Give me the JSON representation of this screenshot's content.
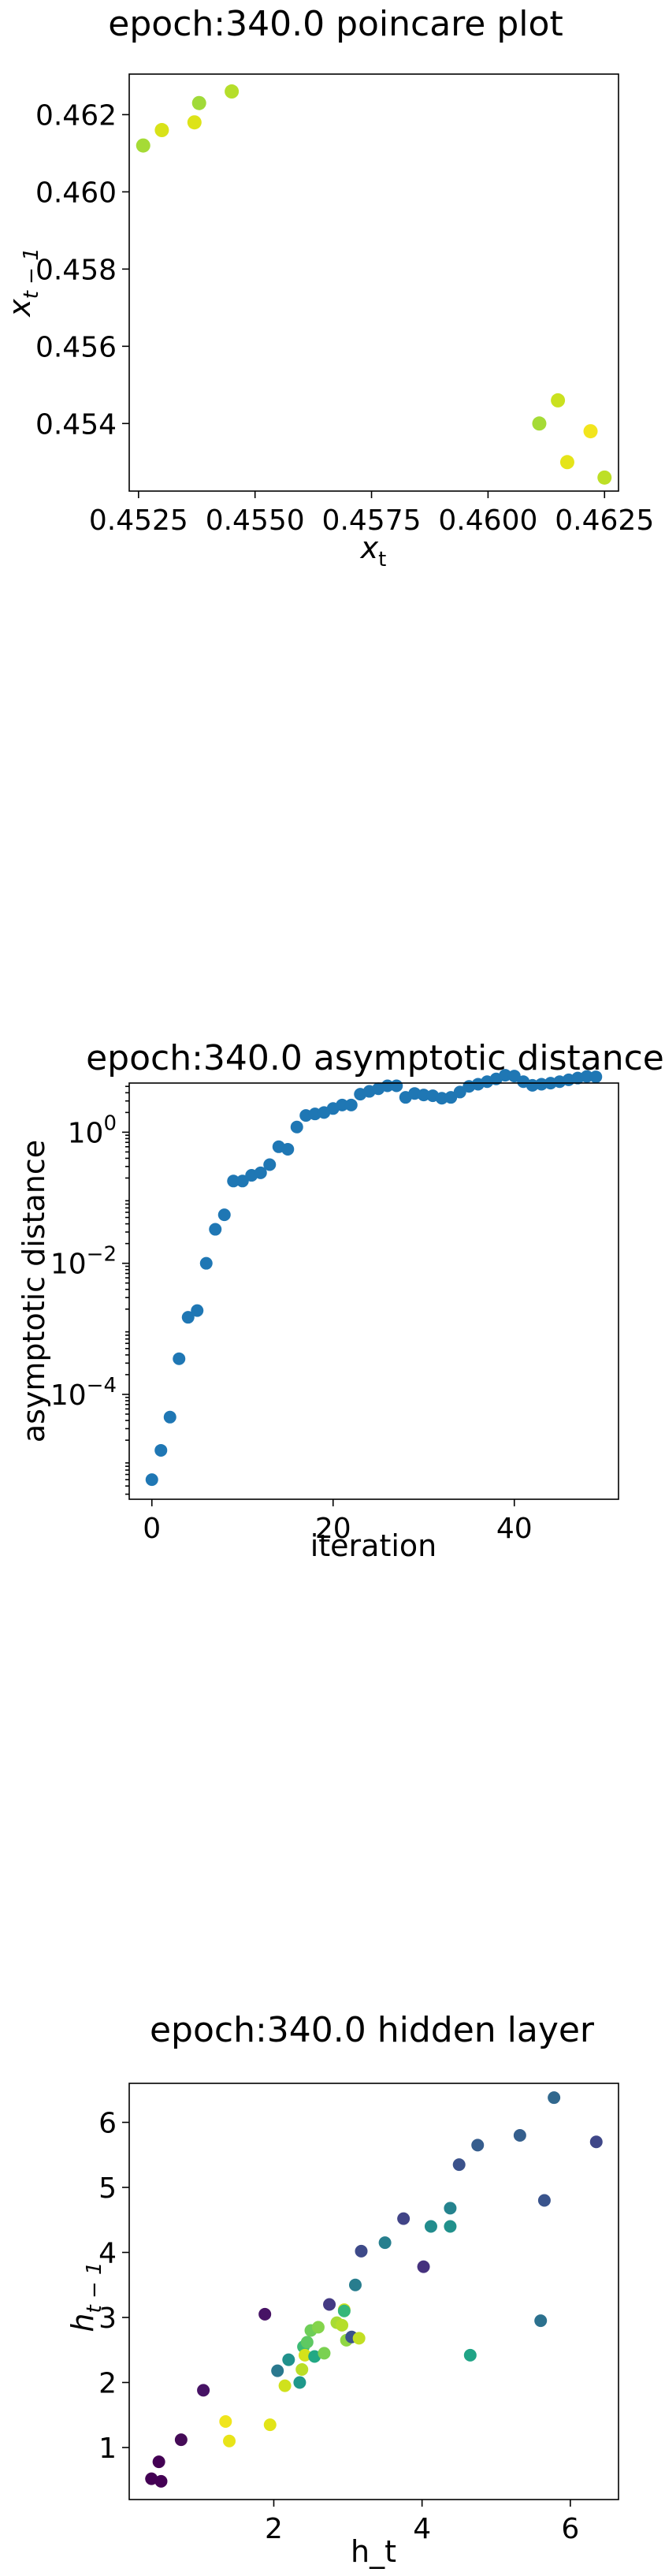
{
  "chart_data": [
    {
      "type": "scatter",
      "title": "epoch:340.0 poincare plot",
      "xlabel": "x_t",
      "ylabel": "x_{t-1}",
      "xlim": [
        0.4523,
        0.4628
      ],
      "ylim": [
        0.45225,
        0.46305
      ],
      "xticks": [
        0.4525,
        0.455,
        0.4575,
        0.46,
        0.4625
      ],
      "xtick_labels": [
        "0.4525",
        "0.4550",
        "0.4575",
        "0.4600",
        "0.4625"
      ],
      "yticks": [
        0.454,
        0.456,
        0.458,
        0.46,
        0.462
      ],
      "ytick_labels": [
        "0.454",
        "0.456",
        "0.458",
        "0.460",
        "0.462"
      ],
      "colormap": "viridis",
      "points": [
        {
          "x": 0.4526,
          "y": 0.4612,
          "color": "#a5db36"
        },
        {
          "x": 0.453,
          "y": 0.4616,
          "color": "#d8e219"
        },
        {
          "x": 0.4537,
          "y": 0.4618,
          "color": "#dde318"
        },
        {
          "x": 0.4538,
          "y": 0.4623,
          "color": "#a0da39"
        },
        {
          "x": 0.4545,
          "y": 0.4626,
          "color": "#b5de2b"
        },
        {
          "x": 0.4611,
          "y": 0.454,
          "color": "#a5db36"
        },
        {
          "x": 0.4615,
          "y": 0.4546,
          "color": "#cae11f"
        },
        {
          "x": 0.4617,
          "y": 0.453,
          "color": "#e5e419"
        },
        {
          "x": 0.4622,
          "y": 0.4538,
          "color": "#f2e51d"
        },
        {
          "x": 0.4625,
          "y": 0.4526,
          "color": "#bddf26"
        }
      ]
    },
    {
      "type": "scatter",
      "title": "epoch:340.0 asymptotic distance",
      "xlabel": "iteration",
      "ylabel": "asymptotic distance",
      "yscale": "log",
      "xlim": [
        -2.5,
        51.5
      ],
      "ylim_log10": [
        -5.6,
        0.75
      ],
      "xticks": [
        0,
        20,
        40
      ],
      "xtick_labels": [
        "0",
        "20",
        "40"
      ],
      "yticks_log10": [
        -4,
        -2,
        0
      ],
      "color": "#1f77b4",
      "x": [
        0,
        1,
        2,
        3,
        4,
        5,
        6,
        7,
        8,
        9,
        10,
        11,
        12,
        13,
        14,
        15,
        16,
        17,
        18,
        19,
        20,
        21,
        22,
        23,
        24,
        25,
        26,
        27,
        28,
        29,
        30,
        31,
        32,
        33,
        34,
        35,
        36,
        37,
        38,
        39,
        40,
        41,
        42,
        43,
        44,
        45,
        46,
        47,
        48,
        49
      ],
      "y": [
        5e-06,
        1.4e-05,
        4.5e-05,
        0.00035,
        0.0015,
        0.0019,
        0.01,
        0.033,
        0.055,
        0.18,
        0.18,
        0.22,
        0.24,
        0.32,
        0.6,
        0.55,
        1.2,
        1.8,
        1.9,
        2.0,
        2.3,
        2.6,
        2.6,
        3.8,
        4.2,
        4.6,
        5.1,
        5.1,
        3.4,
        3.9,
        3.7,
        3.6,
        3.3,
        3.4,
        4.1,
        5.0,
        5.4,
        5.9,
        6.5,
        7.4,
        7.2,
        5.9,
        5.2,
        5.4,
        5.6,
        5.9,
        6.3,
        6.7,
        7.1,
        7.0
      ]
    },
    {
      "type": "scatter",
      "title": "epoch:340.0 hidden layer",
      "xlabel": "h_t",
      "ylabel": "h_{t-1}",
      "xlim": [
        0.05,
        6.65
      ],
      "ylim": [
        0.2,
        6.6
      ],
      "xticks": [
        2,
        4,
        6
      ],
      "xtick_labels": [
        "2",
        "4",
        "6"
      ],
      "yticks": [
        1,
        2,
        3,
        4,
        5,
        6
      ],
      "ytick_labels": [
        "1",
        "2",
        "3",
        "4",
        "5",
        "6"
      ],
      "colormap": "viridis",
      "points": [
        {
          "x": 0.35,
          "y": 0.52,
          "color": "#440154"
        },
        {
          "x": 0.48,
          "y": 0.48,
          "color": "#440154"
        },
        {
          "x": 0.45,
          "y": 0.78,
          "color": "#440154"
        },
        {
          "x": 0.75,
          "y": 1.12,
          "color": "#450b57"
        },
        {
          "x": 1.05,
          "y": 1.88,
          "color": "#471365"
        },
        {
          "x": 1.88,
          "y": 3.05,
          "color": "#471365"
        },
        {
          "x": 1.35,
          "y": 1.4,
          "color": "#f0e51c"
        },
        {
          "x": 1.4,
          "y": 1.1,
          "color": "#e8e419"
        },
        {
          "x": 1.95,
          "y": 1.35,
          "color": "#e2e418"
        },
        {
          "x": 2.15,
          "y": 1.95,
          "color": "#d0e11c"
        },
        {
          "x": 2.05,
          "y": 2.18,
          "color": "#2a788e"
        },
        {
          "x": 2.2,
          "y": 2.35,
          "color": "#21918c"
        },
        {
          "x": 2.35,
          "y": 2.0,
          "color": "#1f988b"
        },
        {
          "x": 2.4,
          "y": 2.55,
          "color": "#3cbb75"
        },
        {
          "x": 2.45,
          "y": 2.62,
          "color": "#5ec962"
        },
        {
          "x": 2.38,
          "y": 2.2,
          "color": "#bade28"
        },
        {
          "x": 2.42,
          "y": 2.42,
          "color": "#d5e21a"
        },
        {
          "x": 2.5,
          "y": 2.8,
          "color": "#6ece58"
        },
        {
          "x": 2.6,
          "y": 2.85,
          "color": "#84d44b"
        },
        {
          "x": 2.55,
          "y": 2.4,
          "color": "#22a884"
        },
        {
          "x": 2.68,
          "y": 2.45,
          "color": "#7ad151"
        },
        {
          "x": 2.75,
          "y": 3.2,
          "color": "#443a83"
        },
        {
          "x": 2.85,
          "y": 2.92,
          "color": "#a8db34"
        },
        {
          "x": 2.95,
          "y": 3.12,
          "color": "#cde11d"
        },
        {
          "x": 2.92,
          "y": 2.88,
          "color": "#b5de2b"
        },
        {
          "x": 2.95,
          "y": 3.1,
          "color": "#35b779"
        },
        {
          "x": 2.98,
          "y": 2.65,
          "color": "#90d743"
        },
        {
          "x": 3.05,
          "y": 2.7,
          "color": "#3b528b"
        },
        {
          "x": 3.15,
          "y": 2.68,
          "color": "#c2df23"
        },
        {
          "x": 3.1,
          "y": 3.5,
          "color": "#287d8e"
        },
        {
          "x": 3.18,
          "y": 4.02,
          "color": "#3e4a89"
        },
        {
          "x": 3.5,
          "y": 4.15,
          "color": "#277f8e"
        },
        {
          "x": 3.75,
          "y": 4.52,
          "color": "#414487"
        },
        {
          "x": 4.02,
          "y": 3.78,
          "color": "#46327e"
        },
        {
          "x": 4.12,
          "y": 4.4,
          "color": "#228c8d"
        },
        {
          "x": 4.38,
          "y": 4.68,
          "color": "#25838e"
        },
        {
          "x": 4.38,
          "y": 4.4,
          "color": "#21918c"
        },
        {
          "x": 4.5,
          "y": 5.35,
          "color": "#3b528b"
        },
        {
          "x": 4.65,
          "y": 2.42,
          "color": "#20a486"
        },
        {
          "x": 4.75,
          "y": 5.65,
          "color": "#365d8d"
        },
        {
          "x": 5.32,
          "y": 5.8,
          "color": "#355f8d"
        },
        {
          "x": 5.6,
          "y": 2.95,
          "color": "#2c718e"
        },
        {
          "x": 5.65,
          "y": 4.8,
          "color": "#3a548c"
        },
        {
          "x": 5.78,
          "y": 6.38,
          "color": "#31688e"
        },
        {
          "x": 6.35,
          "y": 5.7,
          "color": "#3f4788"
        }
      ]
    }
  ]
}
